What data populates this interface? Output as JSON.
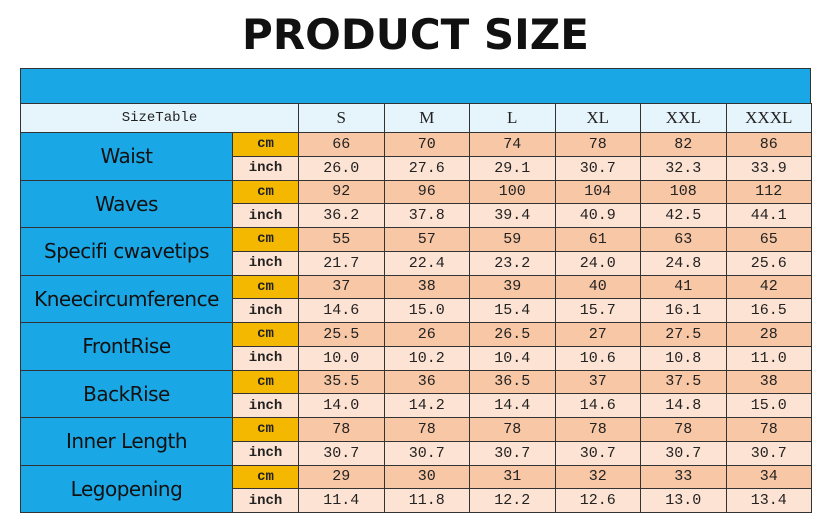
{
  "title": "PRODUCT SIZE",
  "table": {
    "header": {
      "label": "SizeTable",
      "sizes": [
        "S",
        "M",
        "L",
        "XL",
        "XXL",
        "XXXL"
      ]
    },
    "rows": [
      {
        "name": "Waist",
        "units": [
          "cm",
          "inch"
        ],
        "values": [
          [
            "66",
            "70",
            "74",
            "78",
            "82",
            "86"
          ],
          [
            "26.0",
            "27.6",
            "29.1",
            "30.7",
            "32.3",
            "33.9"
          ]
        ]
      },
      {
        "name": "Waves",
        "units": [
          "cm",
          "inch"
        ],
        "values": [
          [
            "92",
            "96",
            "100",
            "104",
            "108",
            "112"
          ],
          [
            "36.2",
            "37.8",
            "39.4",
            "40.9",
            "42.5",
            "44.1"
          ]
        ]
      },
      {
        "name": "Specifi cwavetips",
        "units": [
          "cm",
          "inch"
        ],
        "values": [
          [
            "55",
            "57",
            "59",
            "61",
            "63",
            "65"
          ],
          [
            "21.7",
            "22.4",
            "23.2",
            "24.0",
            "24.8",
            "25.6"
          ]
        ]
      },
      {
        "name": "Kneecircumference",
        "units": [
          "cm",
          "inch"
        ],
        "values": [
          [
            "37",
            "38",
            "39",
            "40",
            "41",
            "42"
          ],
          [
            "14.6",
            "15.0",
            "15.4",
            "15.7",
            "16.1",
            "16.5"
          ]
        ]
      },
      {
        "name": "FrontRise",
        "units": [
          "cm",
          "inch"
        ],
        "values": [
          [
            "25.5",
            "26",
            "26.5",
            "27",
            "27.5",
            "28"
          ],
          [
            "10.0",
            "10.2",
            "10.4",
            "10.6",
            "10.8",
            "11.0"
          ]
        ]
      },
      {
        "name": "BackRise",
        "units": [
          "cm",
          "inch"
        ],
        "values": [
          [
            "35.5",
            "36",
            "36.5",
            "37",
            "37.5",
            "38"
          ],
          [
            "14.0",
            "14.2",
            "14.4",
            "14.6",
            "14.8",
            "15.0"
          ]
        ]
      },
      {
        "name": "Inner Length",
        "units": [
          "cm",
          "inch"
        ],
        "values": [
          [
            "78",
            "78",
            "78",
            "78",
            "78",
            "78"
          ],
          [
            "30.7",
            "30.7",
            "30.7",
            "30.7",
            "30.7",
            "30.7"
          ]
        ]
      },
      {
        "name": "Legopening",
        "units": [
          "cm",
          "inch"
        ],
        "values": [
          [
            "29",
            "30",
            "31",
            "32",
            "33",
            "34"
          ],
          [
            "11.4",
            "11.8",
            "12.2",
            "12.6",
            "13.0",
            "13.4"
          ]
        ]
      }
    ]
  }
}
